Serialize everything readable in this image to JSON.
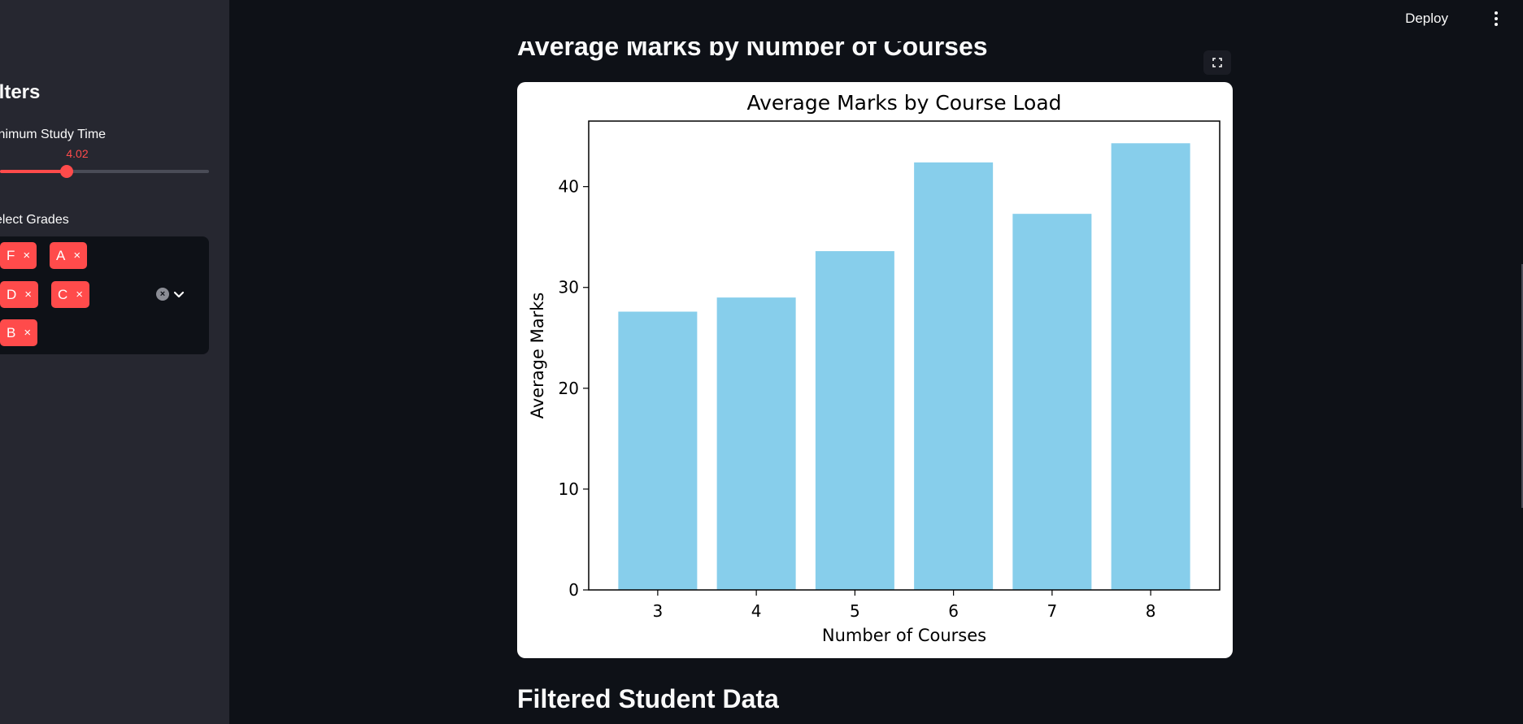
{
  "header": {
    "deploy_label": "Deploy"
  },
  "sidebar": {
    "heading": "ilters",
    "study_time": {
      "label": "inimum Study Time",
      "value": "4.02",
      "fraction": 0.32
    },
    "grades": {
      "label": "elect Grades",
      "selected": [
        {
          "label": "F",
          "remove": "×"
        },
        {
          "label": "A",
          "remove": "×"
        },
        {
          "label": "D",
          "remove": "×"
        },
        {
          "label": "C",
          "remove": "×"
        },
        {
          "label": "B",
          "remove": "×"
        }
      ]
    }
  },
  "main": {
    "section_title": "Average Marks by Number of Courses",
    "section2_title": "Filtered Student Data"
  },
  "icons": {
    "clear": "clear-all-icon",
    "chevron": "chevron-down-icon",
    "fullscreen": "fullscreen-icon",
    "menu": "vertical-dots-icon"
  },
  "colors": {
    "accent": "#ff4b4b",
    "bar": "#87ceeb",
    "background": "#0e1117",
    "sidebar": "#262730"
  },
  "chart_data": {
    "type": "bar",
    "title": "Average Marks by Course Load",
    "xlabel": "Number of Courses",
    "ylabel": "Average Marks",
    "categories": [
      "3",
      "4",
      "5",
      "6",
      "7",
      "8"
    ],
    "values": [
      27.6,
      29.0,
      33.6,
      42.4,
      37.3,
      44.3
    ],
    "ylim": [
      0,
      46.5
    ],
    "yticks": [
      "0",
      "10",
      "20",
      "30",
      "40"
    ],
    "grid": false,
    "legend": "none"
  }
}
